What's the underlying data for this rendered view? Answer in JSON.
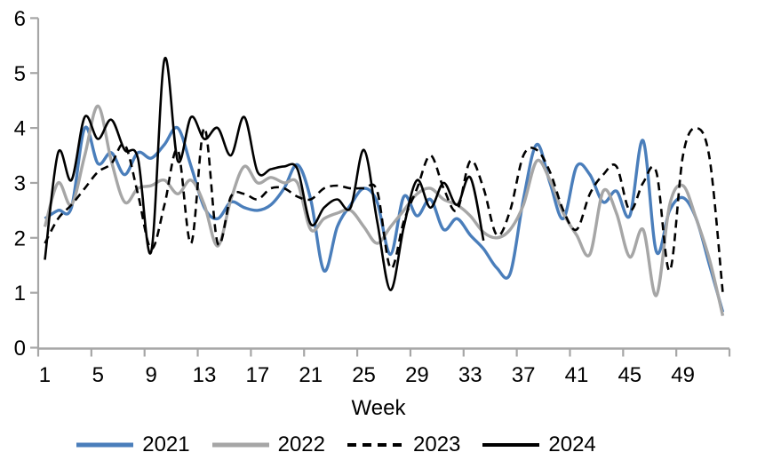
{
  "chart_data": {
    "type": "line",
    "xlabel": "Week",
    "x_weeks": "1-52 (weekly data, smoothed lines)",
    "x_tick_labels": [
      1,
      5,
      9,
      13,
      17,
      21,
      25,
      29,
      33,
      37,
      41,
      45,
      49
    ],
    "y_ticks": [
      0,
      1,
      2,
      3,
      4,
      5,
      6
    ],
    "ylim": [
      0,
      6
    ],
    "grid": false,
    "legend_position": "bottom-center",
    "axis_color": "#a6a6a6",
    "text_color": "#000000",
    "background": "#ffffff",
    "series": [
      {
        "name": "2021",
        "color": "#4a7ebb",
        "style": "solid",
        "week_start": 1,
        "week_end": 52,
        "values": [
          2.35,
          2.5,
          2.55,
          4.0,
          3.35,
          3.55,
          3.15,
          3.55,
          3.45,
          3.7,
          4.0,
          3.3,
          2.55,
          2.35,
          2.65,
          2.55,
          2.5,
          2.6,
          2.9,
          3.33,
          2.7,
          1.4,
          2.2,
          2.6,
          2.9,
          2.65,
          1.7,
          2.75,
          2.4,
          2.7,
          2.15,
          2.35,
          2.05,
          1.8,
          1.45,
          1.35,
          2.7,
          3.7,
          3.0,
          2.35,
          3.3,
          3.15,
          2.65,
          2.85,
          2.4,
          3.77,
          1.75,
          2.5,
          2.73,
          2.35,
          1.5,
          0.65
        ]
      },
      {
        "name": "2022",
        "color": "#a6a6a6",
        "style": "solid",
        "week_start": 1,
        "week_end": 52,
        "values": [
          2.2,
          3.0,
          2.6,
          3.5,
          4.4,
          3.4,
          2.65,
          2.9,
          2.95,
          3.05,
          2.8,
          3.05,
          2.6,
          1.85,
          2.7,
          3.3,
          3.0,
          3.1,
          3.0,
          3.0,
          2.15,
          2.35,
          2.45,
          2.5,
          2.2,
          1.9,
          2.2,
          2.5,
          2.8,
          2.9,
          2.7,
          2.6,
          2.4,
          2.1,
          2.0,
          2.15,
          2.6,
          3.4,
          3.05,
          2.45,
          2.05,
          1.7,
          2.85,
          2.45,
          1.65,
          2.15,
          0.95,
          2.6,
          2.95,
          2.35,
          1.6,
          0.58
        ]
      },
      {
        "name": "2023",
        "color": "#000000",
        "style": "dashed",
        "week_start": 1,
        "week_end": 52,
        "values": [
          1.9,
          2.35,
          2.6,
          2.9,
          3.2,
          3.35,
          3.7,
          2.8,
          1.8,
          2.6,
          3.6,
          1.9,
          4.0,
          1.9,
          2.75,
          2.8,
          2.7,
          2.9,
          2.9,
          2.75,
          2.7,
          2.9,
          2.95,
          2.9,
          2.9,
          2.85,
          1.45,
          2.3,
          2.9,
          3.5,
          2.9,
          2.5,
          3.4,
          2.9,
          2.05,
          2.5,
          3.5,
          3.6,
          3.2,
          2.5,
          2.15,
          2.8,
          3.15,
          3.3,
          2.5,
          3.0,
          3.2,
          1.4,
          3.5,
          4.0,
          3.45,
          1.0
        ]
      },
      {
        "name": "2024",
        "color": "#000000",
        "style": "solid",
        "week_start": 1,
        "week_end": 34,
        "values": [
          1.6,
          3.55,
          3.05,
          4.2,
          3.8,
          4.15,
          3.6,
          3.45,
          1.75,
          5.25,
          3.4,
          4.2,
          3.8,
          4.0,
          3.5,
          4.2,
          3.2,
          3.25,
          3.3,
          3.25,
          2.25,
          2.55,
          2.7,
          2.55,
          3.6,
          2.3,
          1.05,
          2.2,
          3.05,
          2.55,
          3.0,
          2.6,
          3.1,
          1.95
        ]
      }
    ]
  }
}
